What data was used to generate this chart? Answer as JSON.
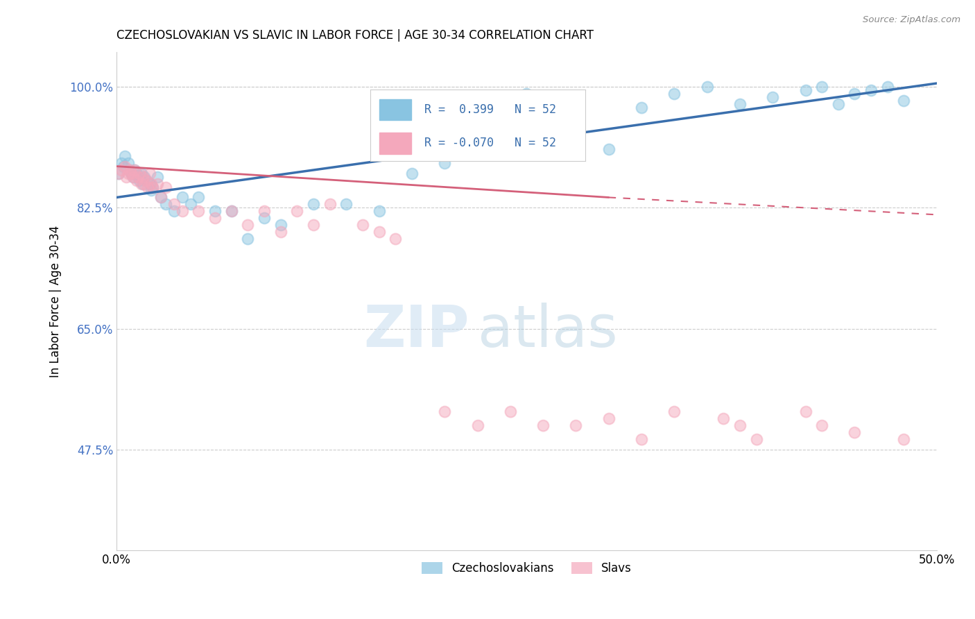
{
  "title": "CZECHOSLOVAKIAN VS SLAVIC IN LABOR FORCE | AGE 30-34 CORRELATION CHART",
  "source": "Source: ZipAtlas.com",
  "ylabel": "In Labor Force | Age 30-34",
  "xlim": [
    0.0,
    0.5
  ],
  "ylim": [
    0.33,
    1.05
  ],
  "yticks": [
    0.475,
    0.65,
    0.825,
    1.0
  ],
  "ytick_labels": [
    "47.5%",
    "65.0%",
    "82.5%",
    "100.0%"
  ],
  "xtick_labels": [
    "0.0%",
    "50.0%"
  ],
  "xticks": [
    0.0,
    0.5
  ],
  "r_czech": 0.399,
  "n_czech": 52,
  "r_slavic": -0.07,
  "n_slavic": 52,
  "blue_color": "#89c4e1",
  "pink_color": "#f4a8bc",
  "blue_line_color": "#3a6fad",
  "pink_line_color": "#d4607a",
  "czech_x": [
    0.001,
    0.003,
    0.004,
    0.005,
    0.007,
    0.008,
    0.009,
    0.01,
    0.011,
    0.012,
    0.013,
    0.014,
    0.015,
    0.016,
    0.017,
    0.018,
    0.02,
    0.021,
    0.022,
    0.025,
    0.027,
    0.03,
    0.035,
    0.04,
    0.045,
    0.05,
    0.06,
    0.07,
    0.08,
    0.09,
    0.1,
    0.12,
    0.14,
    0.16,
    0.18,
    0.2,
    0.22,
    0.25,
    0.28,
    0.3,
    0.32,
    0.34,
    0.36,
    0.38,
    0.4,
    0.42,
    0.43,
    0.44,
    0.45,
    0.46,
    0.47,
    0.48
  ],
  "czech_y": [
    0.875,
    0.89,
    0.885,
    0.9,
    0.89,
    0.88,
    0.875,
    0.87,
    0.88,
    0.875,
    0.87,
    0.865,
    0.875,
    0.86,
    0.87,
    0.865,
    0.86,
    0.85,
    0.855,
    0.87,
    0.84,
    0.83,
    0.82,
    0.84,
    0.83,
    0.84,
    0.82,
    0.82,
    0.78,
    0.81,
    0.8,
    0.83,
    0.83,
    0.82,
    0.875,
    0.89,
    0.92,
    0.99,
    0.94,
    0.91,
    0.97,
    0.99,
    1.0,
    0.975,
    0.985,
    0.995,
    1.0,
    0.975,
    0.99,
    0.995,
    1.0,
    0.98
  ],
  "slavic_x": [
    0.001,
    0.003,
    0.005,
    0.006,
    0.007,
    0.008,
    0.009,
    0.01,
    0.011,
    0.012,
    0.013,
    0.014,
    0.015,
    0.016,
    0.017,
    0.018,
    0.019,
    0.02,
    0.021,
    0.022,
    0.025,
    0.027,
    0.03,
    0.035,
    0.04,
    0.05,
    0.06,
    0.07,
    0.08,
    0.09,
    0.1,
    0.11,
    0.12,
    0.13,
    0.15,
    0.16,
    0.17,
    0.2,
    0.22,
    0.24,
    0.26,
    0.28,
    0.3,
    0.32,
    0.34,
    0.37,
    0.38,
    0.39,
    0.42,
    0.43,
    0.45,
    0.48
  ],
  "slavic_y": [
    0.875,
    0.88,
    0.885,
    0.87,
    0.875,
    0.88,
    0.875,
    0.87,
    0.88,
    0.865,
    0.87,
    0.875,
    0.86,
    0.87,
    0.86,
    0.865,
    0.855,
    0.875,
    0.86,
    0.855,
    0.86,
    0.84,
    0.855,
    0.83,
    0.82,
    0.82,
    0.81,
    0.82,
    0.8,
    0.82,
    0.79,
    0.82,
    0.8,
    0.83,
    0.8,
    0.79,
    0.78,
    0.53,
    0.51,
    0.53,
    0.51,
    0.51,
    0.52,
    0.49,
    0.53,
    0.52,
    0.51,
    0.49,
    0.53,
    0.51,
    0.5,
    0.49
  ],
  "blue_line_x0": 0.0,
  "blue_line_y0": 0.84,
  "blue_line_x1": 0.5,
  "blue_line_y1": 1.005,
  "pink_line_solid_x0": 0.0,
  "pink_line_solid_y0": 0.885,
  "pink_line_solid_x1": 0.3,
  "pink_line_solid_y1": 0.84,
  "pink_line_dash_x0": 0.3,
  "pink_line_dash_y0": 0.84,
  "pink_line_dash_x1": 0.5,
  "pink_line_dash_y1": 0.815
}
